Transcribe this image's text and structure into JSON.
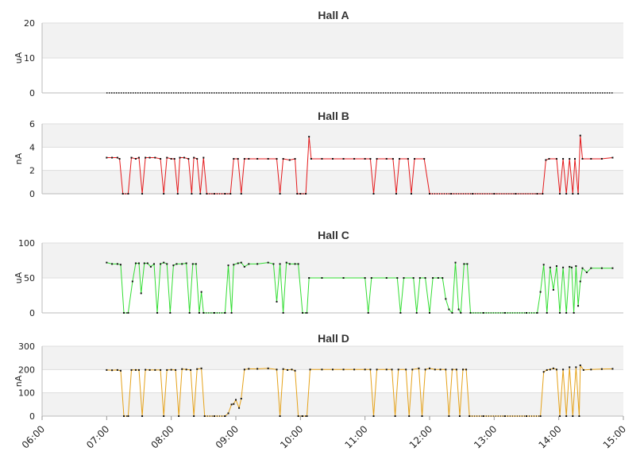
{
  "chart_data": [
    {
      "type": "line",
      "title": "Hall A",
      "ylabel": "uA",
      "ylim": [
        0,
        20
      ],
      "yticks": [
        0,
        10,
        20
      ],
      "color": "#000000",
      "segments": [
        {
          "x0": "07:00",
          "x1": "14:50",
          "y": 0
        }
      ]
    },
    {
      "type": "line",
      "title": "Hall B",
      "ylabel": "nA",
      "ylim": [
        0,
        6
      ],
      "yticks": [
        0,
        2,
        4,
        6
      ],
      "color": "#e41a1c",
      "points": [
        [
          "07:00",
          3.1
        ],
        [
          "07:05",
          3.1
        ],
        [
          "07:10",
          3.1
        ],
        [
          "07:12",
          3.0
        ],
        [
          "07:15",
          0
        ],
        [
          "07:20",
          0
        ],
        [
          "07:23",
          3.1
        ],
        [
          "07:27",
          3.0
        ],
        [
          "07:30",
          3.1
        ],
        [
          "07:33",
          0
        ],
        [
          "07:36",
          3.1
        ],
        [
          "07:40",
          3.1
        ],
        [
          "07:45",
          3.1
        ],
        [
          "07:50",
          3.0
        ],
        [
          "07:53",
          0
        ],
        [
          "07:56",
          3.1
        ],
        [
          "08:00",
          3.0
        ],
        [
          "08:03",
          3.0
        ],
        [
          "08:06",
          0
        ],
        [
          "08:08",
          3.1
        ],
        [
          "08:12",
          3.1
        ],
        [
          "08:16",
          3.0
        ],
        [
          "08:19",
          0
        ],
        [
          "08:21",
          3.1
        ],
        [
          "08:24",
          3.0
        ],
        [
          "08:27",
          0
        ],
        [
          "08:30",
          3.1
        ],
        [
          "08:33",
          0
        ],
        [
          "08:40",
          0
        ],
        [
          "08:50",
          0
        ],
        [
          "08:55",
          0
        ],
        [
          "08:58",
          3.0
        ],
        [
          "09:02",
          3.0
        ],
        [
          "09:05",
          0
        ],
        [
          "09:08",
          3.0
        ],
        [
          "09:12",
          3.0
        ],
        [
          "09:20",
          3.0
        ],
        [
          "09:30",
          3.0
        ],
        [
          "09:38",
          3.0
        ],
        [
          "09:41",
          0
        ],
        [
          "09:44",
          3.0
        ],
        [
          "09:50",
          2.9
        ],
        [
          "09:55",
          3.0
        ],
        [
          "09:57",
          0
        ],
        [
          "10:00",
          0
        ],
        [
          "10:05",
          0
        ],
        [
          "10:08",
          4.9
        ],
        [
          "10:10",
          3.0
        ],
        [
          "10:20",
          3.0
        ],
        [
          "10:30",
          3.0
        ],
        [
          "10:40",
          3.0
        ],
        [
          "10:50",
          3.0
        ],
        [
          "11:00",
          3.0
        ],
        [
          "11:05",
          3.0
        ],
        [
          "11:08",
          0
        ],
        [
          "11:11",
          3.0
        ],
        [
          "11:20",
          3.0
        ],
        [
          "11:26",
          3.0
        ],
        [
          "11:29",
          0
        ],
        [
          "11:32",
          3.0
        ],
        [
          "11:40",
          3.0
        ],
        [
          "11:43",
          0
        ],
        [
          "11:46",
          3.0
        ],
        [
          "11:55",
          3.0
        ],
        [
          "12:00",
          0
        ],
        [
          "12:20",
          0
        ],
        [
          "12:40",
          0
        ],
        [
          "13:00",
          0
        ],
        [
          "13:20",
          0
        ],
        [
          "13:40",
          0
        ],
        [
          "13:45",
          0
        ],
        [
          "13:48",
          2.9
        ],
        [
          "13:51",
          3.0
        ],
        [
          "13:58",
          3.0
        ],
        [
          "14:01",
          0
        ],
        [
          "14:04",
          3.0
        ],
        [
          "14:07",
          0
        ],
        [
          "14:10",
          3.0
        ],
        [
          "14:13",
          0
        ],
        [
          "14:15",
          3.0
        ],
        [
          "14:18",
          0
        ],
        [
          "14:20",
          5.0
        ],
        [
          "14:22",
          3.0
        ],
        [
          "14:30",
          3.0
        ],
        [
          "14:40",
          3.0
        ],
        [
          "14:50",
          3.1
        ]
      ]
    },
    {
      "type": "line",
      "title": "Hall C",
      "ylabel": "uA",
      "ylim": [
        0,
        100
      ],
      "yticks": [
        0,
        50,
        100
      ],
      "color": "#33dd33",
      "points": [
        [
          "07:00",
          72
        ],
        [
          "07:05",
          70
        ],
        [
          "07:10",
          70
        ],
        [
          "07:13",
          69
        ],
        [
          "07:16",
          0
        ],
        [
          "07:20",
          0
        ],
        [
          "07:24",
          45
        ],
        [
          "07:27",
          71
        ],
        [
          "07:30",
          71
        ],
        [
          "07:32",
          28
        ],
        [
          "07:35",
          71
        ],
        [
          "07:38",
          71
        ],
        [
          "07:41",
          66
        ],
        [
          "07:44",
          70
        ],
        [
          "07:47",
          0
        ],
        [
          "07:50",
          70
        ],
        [
          "07:53",
          72
        ],
        [
          "07:56",
          70
        ],
        [
          "07:59",
          0
        ],
        [
          "08:02",
          68
        ],
        [
          "08:05",
          70
        ],
        [
          "08:10",
          70
        ],
        [
          "08:14",
          71
        ],
        [
          "08:17",
          0
        ],
        [
          "08:20",
          70
        ],
        [
          "08:23",
          70
        ],
        [
          "08:26",
          0
        ],
        [
          "08:28",
          30
        ],
        [
          "08:30",
          0
        ],
        [
          "08:40",
          0
        ],
        [
          "08:50",
          0
        ],
        [
          "08:53",
          68
        ],
        [
          "08:56",
          0
        ],
        [
          "08:58",
          69
        ],
        [
          "09:02",
          71
        ],
        [
          "09:05",
          72
        ],
        [
          "09:08",
          66
        ],
        [
          "09:12",
          70
        ],
        [
          "09:20",
          70
        ],
        [
          "09:30",
          72
        ],
        [
          "09:35",
          70
        ],
        [
          "09:38",
          16
        ],
        [
          "09:41",
          70
        ],
        [
          "09:44",
          0
        ],
        [
          "09:47",
          72
        ],
        [
          "09:50",
          70
        ],
        [
          "09:55",
          70
        ],
        [
          "09:58",
          70
        ],
        [
          "10:02",
          0
        ],
        [
          "10:06",
          0
        ],
        [
          "10:08",
          50
        ],
        [
          "10:20",
          50
        ],
        [
          "10:40",
          50
        ],
        [
          "11:00",
          50
        ],
        [
          "11:03",
          0
        ],
        [
          "11:06",
          50
        ],
        [
          "11:20",
          50
        ],
        [
          "11:30",
          50
        ],
        [
          "11:33",
          0
        ],
        [
          "11:36",
          50
        ],
        [
          "11:45",
          50
        ],
        [
          "11:48",
          0
        ],
        [
          "11:51",
          50
        ],
        [
          "11:56",
          50
        ],
        [
          "12:00",
          0
        ],
        [
          "12:03",
          50
        ],
        [
          "12:08",
          50
        ],
        [
          "12:12",
          50
        ],
        [
          "12:15",
          20
        ],
        [
          "12:18",
          5
        ],
        [
          "12:21",
          0
        ],
        [
          "12:24",
          72
        ],
        [
          "12:27",
          5
        ],
        [
          "12:29",
          0
        ],
        [
          "12:32",
          70
        ],
        [
          "12:35",
          70
        ],
        [
          "12:38",
          0
        ],
        [
          "12:50",
          0
        ],
        [
          "13:10",
          0
        ],
        [
          "13:30",
          0
        ],
        [
          "13:40",
          0
        ],
        [
          "13:43",
          30
        ],
        [
          "13:46",
          69
        ],
        [
          "13:49",
          0
        ],
        [
          "13:52",
          65
        ],
        [
          "13:55",
          33
        ],
        [
          "13:58",
          67
        ],
        [
          "14:01",
          0
        ],
        [
          "14:04",
          65
        ],
        [
          "14:07",
          0
        ],
        [
          "14:10",
          66
        ],
        [
          "14:12",
          65
        ],
        [
          "14:14",
          0
        ],
        [
          "14:16",
          67
        ],
        [
          "14:18",
          10
        ],
        [
          "14:20",
          45
        ],
        [
          "14:22",
          64
        ],
        [
          "14:26",
          58
        ],
        [
          "14:30",
          64
        ],
        [
          "14:40",
          64
        ],
        [
          "14:50",
          64
        ]
      ]
    },
    {
      "type": "line",
      "title": "Hall D",
      "ylabel": "nA",
      "ylim": [
        0,
        300
      ],
      "yticks": [
        0,
        100,
        200,
        300
      ],
      "color": "#e5a21a",
      "points": [
        [
          "07:00",
          198
        ],
        [
          "07:05",
          197
        ],
        [
          "07:10",
          198
        ],
        [
          "07:13",
          195
        ],
        [
          "07:16",
          0
        ],
        [
          "07:20",
          0
        ],
        [
          "07:23",
          198
        ],
        [
          "07:27",
          198
        ],
        [
          "07:30",
          198
        ],
        [
          "07:33",
          0
        ],
        [
          "07:36",
          199
        ],
        [
          "07:40",
          198
        ],
        [
          "07:45",
          198
        ],
        [
          "07:50",
          198
        ],
        [
          "07:53",
          0
        ],
        [
          "07:56",
          198
        ],
        [
          "08:00",
          199
        ],
        [
          "08:04",
          198
        ],
        [
          "08:07",
          0
        ],
        [
          "08:10",
          202
        ],
        [
          "08:14",
          200
        ],
        [
          "08:18",
          198
        ],
        [
          "08:21",
          0
        ],
        [
          "08:24",
          202
        ],
        [
          "08:28",
          205
        ],
        [
          "08:31",
          0
        ],
        [
          "08:40",
          0
        ],
        [
          "08:50",
          0
        ],
        [
          "08:53",
          12
        ],
        [
          "08:56",
          50
        ],
        [
          "08:58",
          52
        ],
        [
          "09:00",
          70
        ],
        [
          "09:03",
          35
        ],
        [
          "09:05",
          75
        ],
        [
          "09:08",
          200
        ],
        [
          "09:12",
          203
        ],
        [
          "09:20",
          203
        ],
        [
          "09:30",
          205
        ],
        [
          "09:38",
          200
        ],
        [
          "09:41",
          0
        ],
        [
          "09:44",
          202
        ],
        [
          "09:48",
          198
        ],
        [
          "09:52",
          200
        ],
        [
          "09:55",
          195
        ],
        [
          "09:58",
          0
        ],
        [
          "10:02",
          0
        ],
        [
          "10:06",
          0
        ],
        [
          "10:09",
          200
        ],
        [
          "10:20",
          200
        ],
        [
          "10:30",
          200
        ],
        [
          "10:40",
          200
        ],
        [
          "10:50",
          200
        ],
        [
          "11:00",
          200
        ],
        [
          "11:05",
          200
        ],
        [
          "11:08",
          0
        ],
        [
          "11:11",
          200
        ],
        [
          "11:20",
          200
        ],
        [
          "11:25",
          200
        ],
        [
          "11:28",
          0
        ],
        [
          "11:31",
          200
        ],
        [
          "11:38",
          200
        ],
        [
          "11:41",
          0
        ],
        [
          "11:44",
          200
        ],
        [
          "11:50",
          205
        ],
        [
          "11:53",
          0
        ],
        [
          "11:56",
          200
        ],
        [
          "12:00",
          205
        ],
        [
          "12:05",
          200
        ],
        [
          "12:10",
          200
        ],
        [
          "12:15",
          200
        ],
        [
          "12:18",
          0
        ],
        [
          "12:21",
          200
        ],
        [
          "12:25",
          200
        ],
        [
          "12:28",
          0
        ],
        [
          "12:31",
          200
        ],
        [
          "12:34",
          200
        ],
        [
          "12:37",
          0
        ],
        [
          "12:50",
          0
        ],
        [
          "13:10",
          0
        ],
        [
          "13:30",
          0
        ],
        [
          "13:43",
          0
        ],
        [
          "13:46",
          190
        ],
        [
          "13:49",
          198
        ],
        [
          "13:52",
          200
        ],
        [
          "13:55",
          205
        ],
        [
          "13:58",
          200
        ],
        [
          "14:01",
          0
        ],
        [
          "14:04",
          200
        ],
        [
          "14:07",
          0
        ],
        [
          "14:10",
          210
        ],
        [
          "14:13",
          0
        ],
        [
          "14:16",
          210
        ],
        [
          "14:19",
          0
        ],
        [
          "14:20",
          218
        ],
        [
          "14:23",
          198
        ],
        [
          "14:30",
          200
        ],
        [
          "14:40",
          202
        ],
        [
          "14:50",
          203
        ]
      ]
    }
  ],
  "xaxis": {
    "ticks": [
      "06:00",
      "07:00",
      "08:00",
      "09:00",
      "10:00",
      "11:00",
      "12:00",
      "13:00",
      "14:00",
      "15:00"
    ]
  }
}
